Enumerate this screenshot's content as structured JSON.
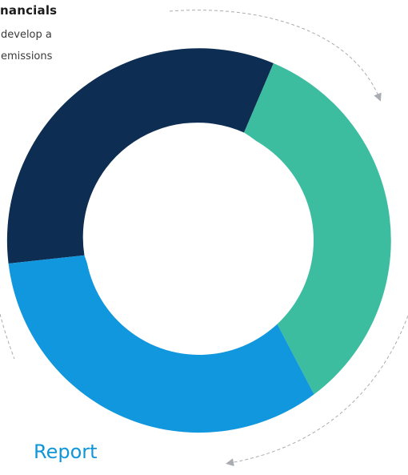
{
  "texts": {
    "heading": "nancials",
    "body_line_1": "develop a",
    "body_line_2": "emissions",
    "report_label": "Report"
  },
  "ring": {
    "segments": [
      {
        "name": "dark-navy-segment",
        "color": "#0d2d52"
      },
      {
        "name": "teal-segment",
        "color": "#3dbd9f"
      },
      {
        "name": "blue-segment",
        "color": "#1197dd"
      }
    ]
  },
  "colors": {
    "arrow": "#a9adb1",
    "report_accent": "#1196d9",
    "hole": "#ffffff"
  }
}
